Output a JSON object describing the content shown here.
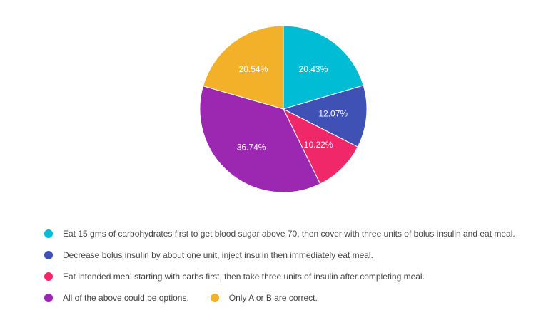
{
  "chart_data": {
    "type": "pie",
    "categories": [
      "Eat 15 gms of carbohydrates first to get blood sugar above 70, then cover with three units of bolus insulin and eat meal.",
      "Decrease bolus insulin by about one unit, inject insulin then immediately eat meal.",
      "Eat intended meal starting with carbs first, then take three units of insulin after completing meal.",
      "All of the above could be options.",
      "Only A or B are correct."
    ],
    "values": [
      20.43,
      12.07,
      10.22,
      36.74,
      20.54
    ],
    "labels": [
      "20.43%",
      "12.07%",
      "10.22%",
      "36.74%",
      "20.54%"
    ],
    "colors": [
      "#00BCD4",
      "#3F51B5",
      "#F0286A",
      "#9C27B0",
      "#F2B128"
    ],
    "legend_position": "bottom",
    "start_angle": "top, clockwise"
  },
  "legend": {
    "items": [
      {
        "label": "Eat 15 gms of carbohydrates first to get blood sugar above 70, then cover with three units of bolus insulin and eat meal.",
        "color": "#00BCD4"
      },
      {
        "label": "Decrease bolus insulin by about one unit, inject insulin then immediately eat meal.",
        "color": "#3F51B5"
      },
      {
        "label": "Eat intended meal starting with carbs first, then take three units of insulin after completing meal.",
        "color": "#F0286A"
      },
      {
        "label": "All of the above could be options.",
        "color": "#9C27B0"
      },
      {
        "label": "Only A or B are correct.",
        "color": "#F2B128"
      }
    ]
  }
}
